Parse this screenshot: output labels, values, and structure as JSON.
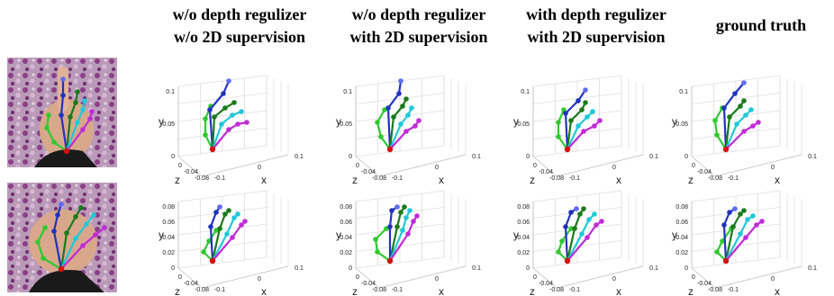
{
  "columns": [
    {
      "line1": "w/o depth regulizer",
      "line2": "w/o 2D supervision"
    },
    {
      "line1": "w/o depth regulizer",
      "line2": "with 2D supervision"
    },
    {
      "line1": "with depth regulizer",
      "line2": "with 2D supervision"
    },
    {
      "line1": "ground truth",
      "line2": ""
    }
  ],
  "rows": [
    {
      "name": "row-1",
      "yticks": [
        "0.1",
        "0.05",
        "0"
      ],
      "zticks": [
        "0",
        "-0.04",
        "-0.08"
      ],
      "xticks": [
        "-0.1",
        "0",
        "0.1"
      ],
      "axis_labels": {
        "x": "x",
        "y": "y",
        "z": "z"
      }
    },
    {
      "name": "row-2",
      "yticks": [
        "0.08",
        "0.06",
        "0.04",
        "0.02",
        "0"
      ],
      "zticks": [
        "0",
        "-0.04",
        "-0.08"
      ],
      "xticks": [
        "-0.1",
        "0",
        "0.1"
      ],
      "axis_labels": {
        "x": "x",
        "y": "y",
        "z": "z"
      }
    }
  ],
  "colors": {
    "thumb": "#2fc92f",
    "index": "#2233bb",
    "middle": "#1b7a1b",
    "ring": "#20c8d8",
    "pinky": "#c12bd6",
    "index_tip": "#5f6cf0",
    "extra": "#b0a010",
    "wrist": "#d41010"
  }
}
